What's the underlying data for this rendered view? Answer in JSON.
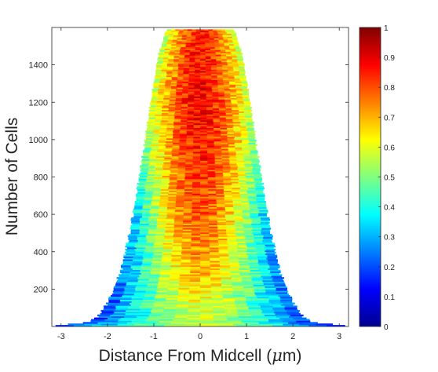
{
  "chart_data": {
    "type": "heatmap",
    "title": "",
    "xlabel": "Distance From Midcell (μm)",
    "xlabel_main": "Distance From Midcell (",
    "xlabel_mu": "μ",
    "xlabel_tail": "m)",
    "ylabel": "Number of Cells",
    "xlim": [
      -3.2,
      3.2
    ],
    "ylim": [
      0,
      1600
    ],
    "x_ticks": [
      -3,
      -2,
      -1,
      0,
      1,
      2,
      3
    ],
    "y_ticks": [
      200,
      400,
      600,
      800,
      1000,
      1200,
      1400
    ],
    "colorbar": {
      "range": [
        0,
        1
      ],
      "ticks": [
        "0",
        "0.1",
        "0.2",
        "0.3",
        "0.4",
        "0.5",
        "0.6",
        "0.7",
        "0.8",
        "0.9",
        "1"
      ],
      "colormap": "jet"
    },
    "grid": false,
    "n_cells": 1590,
    "cell_half_length_profile": [
      {
        "cell": 0,
        "half_length_um": 3.1
      },
      {
        "cell": 20,
        "half_length_um": 2.4
      },
      {
        "cell": 60,
        "half_length_um": 2.15
      },
      {
        "cell": 150,
        "half_length_um": 1.95
      },
      {
        "cell": 300,
        "half_length_um": 1.7
      },
      {
        "cell": 500,
        "half_length_um": 1.52
      },
      {
        "cell": 700,
        "half_length_um": 1.38
      },
      {
        "cell": 900,
        "half_length_um": 1.25
      },
      {
        "cell": 1100,
        "half_length_um": 1.13
      },
      {
        "cell": 1300,
        "half_length_um": 1.0
      },
      {
        "cell": 1450,
        "half_length_um": 0.9
      },
      {
        "cell": 1590,
        "half_length_um": 0.72
      }
    ],
    "mean_intensity_by_cell": [
      {
        "cell": 0,
        "edge": 0.15,
        "center": 0.55
      },
      {
        "cell": 300,
        "edge": 0.22,
        "center": 0.7
      },
      {
        "cell": 600,
        "edge": 0.3,
        "center": 0.8
      },
      {
        "cell": 900,
        "edge": 0.45,
        "center": 0.85
      },
      {
        "cell": 1200,
        "edge": 0.55,
        "center": 0.88
      },
      {
        "cell": 1590,
        "edge": 0.55,
        "center": 0.85
      }
    ]
  }
}
